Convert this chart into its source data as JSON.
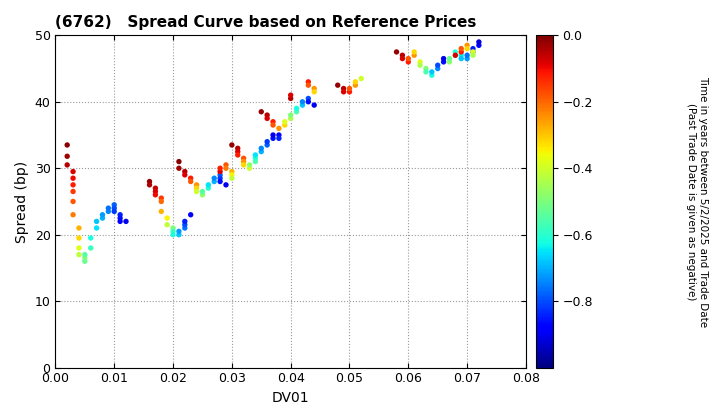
{
  "title": "(6762)   Spread Curve based on Reference Prices",
  "xlabel": "DV01",
  "ylabel": "Spread (bp)",
  "xlim": [
    0.0,
    0.08
  ],
  "ylim": [
    0,
    50
  ],
  "xticks": [
    0.0,
    0.01,
    0.02,
    0.03,
    0.04,
    0.05,
    0.06,
    0.07,
    0.08
  ],
  "yticks": [
    0,
    10,
    20,
    30,
    40,
    50
  ],
  "colorbar_label_line1": "Time in years between 5/2/2025 and Trade Date",
  "colorbar_label_line2": "(Past Trade Date is given as negative)",
  "clim_min": -1.0,
  "clim_max": 0.0,
  "colorbar_ticks": [
    0.0,
    -0.2,
    -0.4,
    -0.6,
    -0.8
  ],
  "scatter_points": [
    [
      0.002,
      33.5,
      -0.01
    ],
    [
      0.002,
      31.8,
      -0.03
    ],
    [
      0.002,
      30.5,
      -0.05
    ],
    [
      0.003,
      29.5,
      -0.08
    ],
    [
      0.003,
      28.5,
      -0.1
    ],
    [
      0.003,
      27.5,
      -0.12
    ],
    [
      0.003,
      26.5,
      -0.15
    ],
    [
      0.003,
      25.0,
      -0.18
    ],
    [
      0.003,
      23.0,
      -0.22
    ],
    [
      0.004,
      21.0,
      -0.28
    ],
    [
      0.004,
      19.5,
      -0.32
    ],
    [
      0.004,
      18.0,
      -0.38
    ],
    [
      0.004,
      17.0,
      -0.42
    ],
    [
      0.005,
      16.5,
      -0.48
    ],
    [
      0.005,
      16.0,
      -0.52
    ],
    [
      0.005,
      17.0,
      -0.55
    ],
    [
      0.006,
      18.0,
      -0.58
    ],
    [
      0.006,
      19.5,
      -0.62
    ],
    [
      0.007,
      21.0,
      -0.65
    ],
    [
      0.007,
      22.0,
      -0.68
    ],
    [
      0.008,
      22.5,
      -0.7
    ],
    [
      0.008,
      23.0,
      -0.72
    ],
    [
      0.009,
      23.5,
      -0.74
    ],
    [
      0.009,
      24.0,
      -0.76
    ],
    [
      0.01,
      24.5,
      -0.78
    ],
    [
      0.01,
      24.0,
      -0.8
    ],
    [
      0.01,
      23.5,
      -0.82
    ],
    [
      0.011,
      23.0,
      -0.84
    ],
    [
      0.011,
      22.5,
      -0.86
    ],
    [
      0.011,
      22.0,
      -0.88
    ],
    [
      0.012,
      22.0,
      -0.9
    ],
    [
      0.016,
      28.0,
      -0.02
    ],
    [
      0.016,
      27.5,
      -0.04
    ],
    [
      0.017,
      27.0,
      -0.06
    ],
    [
      0.017,
      26.5,
      -0.08
    ],
    [
      0.017,
      26.0,
      -0.1
    ],
    [
      0.018,
      25.5,
      -0.15
    ],
    [
      0.018,
      25.0,
      -0.2
    ],
    [
      0.018,
      23.5,
      -0.28
    ],
    [
      0.019,
      22.5,
      -0.35
    ],
    [
      0.019,
      21.5,
      -0.42
    ],
    [
      0.02,
      21.0,
      -0.5
    ],
    [
      0.02,
      20.5,
      -0.58
    ],
    [
      0.02,
      20.0,
      -0.62
    ],
    [
      0.021,
      20.0,
      -0.68
    ],
    [
      0.021,
      20.5,
      -0.72
    ],
    [
      0.022,
      21.0,
      -0.76
    ],
    [
      0.022,
      21.5,
      -0.8
    ],
    [
      0.022,
      22.0,
      -0.84
    ],
    [
      0.023,
      23.0,
      -0.88
    ],
    [
      0.021,
      31.0,
      -0.01
    ],
    [
      0.021,
      30.0,
      -0.03
    ],
    [
      0.022,
      29.5,
      -0.05
    ],
    [
      0.022,
      29.0,
      -0.08
    ],
    [
      0.023,
      28.5,
      -0.12
    ],
    [
      0.023,
      28.0,
      -0.18
    ],
    [
      0.024,
      27.5,
      -0.25
    ],
    [
      0.024,
      27.0,
      -0.32
    ],
    [
      0.024,
      26.5,
      -0.4
    ],
    [
      0.025,
      26.0,
      -0.48
    ],
    [
      0.025,
      26.5,
      -0.55
    ],
    [
      0.026,
      27.0,
      -0.6
    ],
    [
      0.026,
      27.5,
      -0.65
    ],
    [
      0.027,
      28.0,
      -0.7
    ],
    [
      0.027,
      28.5,
      -0.74
    ],
    [
      0.028,
      29.0,
      -0.78
    ],
    [
      0.028,
      28.5,
      -0.82
    ],
    [
      0.028,
      28.0,
      -0.86
    ],
    [
      0.029,
      27.5,
      -0.9
    ],
    [
      0.028,
      29.5,
      -0.08
    ],
    [
      0.028,
      30.0,
      -0.12
    ],
    [
      0.029,
      30.5,
      -0.18
    ],
    [
      0.029,
      30.0,
      -0.22
    ],
    [
      0.03,
      29.5,
      -0.28
    ],
    [
      0.03,
      29.0,
      -0.35
    ],
    [
      0.03,
      28.5,
      -0.42
    ],
    [
      0.03,
      33.5,
      -0.02
    ],
    [
      0.031,
      33.0,
      -0.05
    ],
    [
      0.031,
      32.5,
      -0.08
    ],
    [
      0.031,
      32.0,
      -0.12
    ],
    [
      0.032,
      31.5,
      -0.18
    ],
    [
      0.032,
      31.0,
      -0.25
    ],
    [
      0.032,
      30.5,
      -0.32
    ],
    [
      0.033,
      30.0,
      -0.4
    ],
    [
      0.033,
      30.5,
      -0.48
    ],
    [
      0.034,
      31.0,
      -0.55
    ],
    [
      0.034,
      31.5,
      -0.6
    ],
    [
      0.034,
      32.0,
      -0.65
    ],
    [
      0.035,
      32.5,
      -0.7
    ],
    [
      0.035,
      33.0,
      -0.74
    ],
    [
      0.036,
      33.5,
      -0.78
    ],
    [
      0.036,
      34.0,
      -0.82
    ],
    [
      0.037,
      34.5,
      -0.86
    ],
    [
      0.037,
      35.0,
      -0.9
    ],
    [
      0.038,
      35.0,
      -0.88
    ],
    [
      0.038,
      34.5,
      -0.84
    ],
    [
      0.035,
      38.5,
      -0.02
    ],
    [
      0.036,
      38.0,
      -0.05
    ],
    [
      0.036,
      37.5,
      -0.08
    ],
    [
      0.037,
      37.0,
      -0.12
    ],
    [
      0.037,
      36.5,
      -0.18
    ],
    [
      0.038,
      36.0,
      -0.25
    ],
    [
      0.039,
      36.5,
      -0.32
    ],
    [
      0.039,
      37.0,
      -0.38
    ],
    [
      0.04,
      37.5,
      -0.44
    ],
    [
      0.04,
      38.0,
      -0.5
    ],
    [
      0.041,
      38.5,
      -0.56
    ],
    [
      0.041,
      39.0,
      -0.62
    ],
    [
      0.042,
      39.5,
      -0.68
    ],
    [
      0.042,
      40.0,
      -0.74
    ],
    [
      0.043,
      40.5,
      -0.8
    ],
    [
      0.043,
      40.0,
      -0.86
    ],
    [
      0.044,
      39.5,
      -0.9
    ],
    [
      0.04,
      40.5,
      -0.05
    ],
    [
      0.04,
      41.0,
      -0.08
    ],
    [
      0.043,
      43.0,
      -0.12
    ],
    [
      0.043,
      42.5,
      -0.18
    ],
    [
      0.044,
      42.0,
      -0.25
    ],
    [
      0.044,
      41.5,
      -0.32
    ],
    [
      0.048,
      42.5,
      -0.02
    ],
    [
      0.049,
      42.0,
      -0.05
    ],
    [
      0.049,
      41.5,
      -0.08
    ],
    [
      0.05,
      41.5,
      -0.12
    ],
    [
      0.05,
      42.0,
      -0.18
    ],
    [
      0.051,
      42.5,
      -0.25
    ],
    [
      0.051,
      43.0,
      -0.32
    ],
    [
      0.052,
      43.5,
      -0.4
    ],
    [
      0.058,
      47.5,
      -0.02
    ],
    [
      0.059,
      47.0,
      -0.05
    ],
    [
      0.059,
      46.5,
      -0.08
    ],
    [
      0.06,
      46.0,
      -0.12
    ],
    [
      0.06,
      46.5,
      -0.18
    ],
    [
      0.061,
      47.0,
      -0.25
    ],
    [
      0.061,
      47.5,
      -0.32
    ],
    [
      0.062,
      46.0,
      -0.38
    ],
    [
      0.062,
      45.5,
      -0.44
    ],
    [
      0.063,
      45.0,
      -0.5
    ],
    [
      0.063,
      44.5,
      -0.56
    ],
    [
      0.064,
      44.0,
      -0.62
    ],
    [
      0.064,
      44.5,
      -0.68
    ],
    [
      0.065,
      45.0,
      -0.74
    ],
    [
      0.065,
      45.5,
      -0.8
    ],
    [
      0.066,
      46.0,
      -0.86
    ],
    [
      0.066,
      46.5,
      -0.9
    ],
    [
      0.067,
      46.0,
      -0.48
    ],
    [
      0.067,
      46.5,
      -0.52
    ],
    [
      0.068,
      47.0,
      -0.56
    ],
    [
      0.068,
      47.5,
      -0.6
    ],
    [
      0.069,
      47.0,
      -0.64
    ],
    [
      0.069,
      46.5,
      -0.68
    ],
    [
      0.07,
      46.5,
      -0.72
    ],
    [
      0.07,
      47.0,
      -0.76
    ],
    [
      0.071,
      47.5,
      -0.8
    ],
    [
      0.071,
      48.0,
      -0.84
    ],
    [
      0.072,
      48.5,
      -0.88
    ],
    [
      0.072,
      49.0,
      -0.92
    ],
    [
      0.068,
      47.0,
      -0.08
    ],
    [
      0.069,
      47.5,
      -0.12
    ],
    [
      0.069,
      48.0,
      -0.18
    ],
    [
      0.07,
      48.5,
      -0.25
    ],
    [
      0.07,
      48.0,
      -0.32
    ],
    [
      0.071,
      47.5,
      -0.38
    ],
    [
      0.071,
      47.0,
      -0.44
    ]
  ]
}
